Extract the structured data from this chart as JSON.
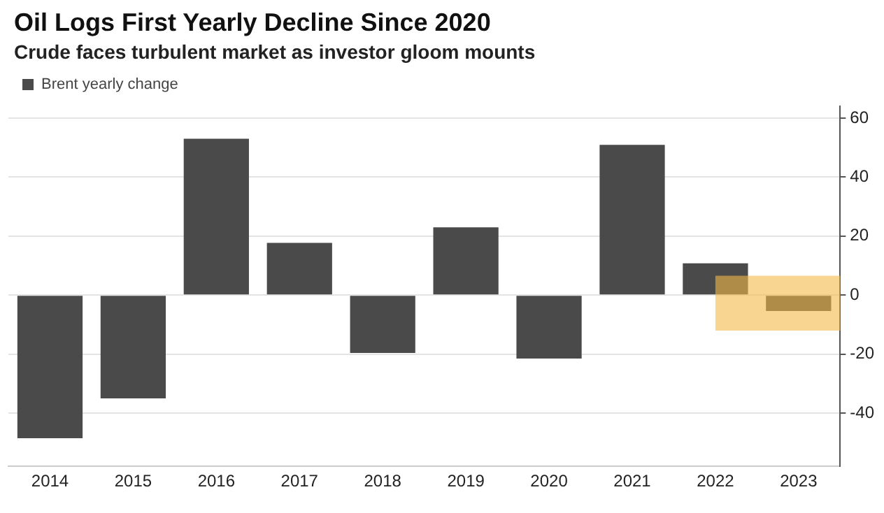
{
  "chart_data": {
    "type": "bar",
    "title": "Oil Logs First Yearly Decline Since 2020",
    "subtitle": "Crude faces turbulent market as investor gloom mounts",
    "categories": [
      "2014",
      "2015",
      "2016",
      "2017",
      "2018",
      "2019",
      "2020",
      "2021",
      "2022",
      "2023"
    ],
    "series": [
      {
        "name": "Brent yearly change",
        "color": "#4a4a4a",
        "values": [
          -48.5,
          -35,
          53,
          17.7,
          -19.6,
          23,
          -21.5,
          50.9,
          10.8,
          -5.4
        ]
      }
    ],
    "ylim": [
      -58,
      64
    ],
    "yticks": [
      -40,
      -20,
      0,
      20,
      40,
      60
    ],
    "grid": "y",
    "legend": "top left",
    "bands": [
      {
        "axis": "y",
        "from": -12,
        "to": 6.6,
        "color": "#f5b94a"
      }
    ]
  }
}
